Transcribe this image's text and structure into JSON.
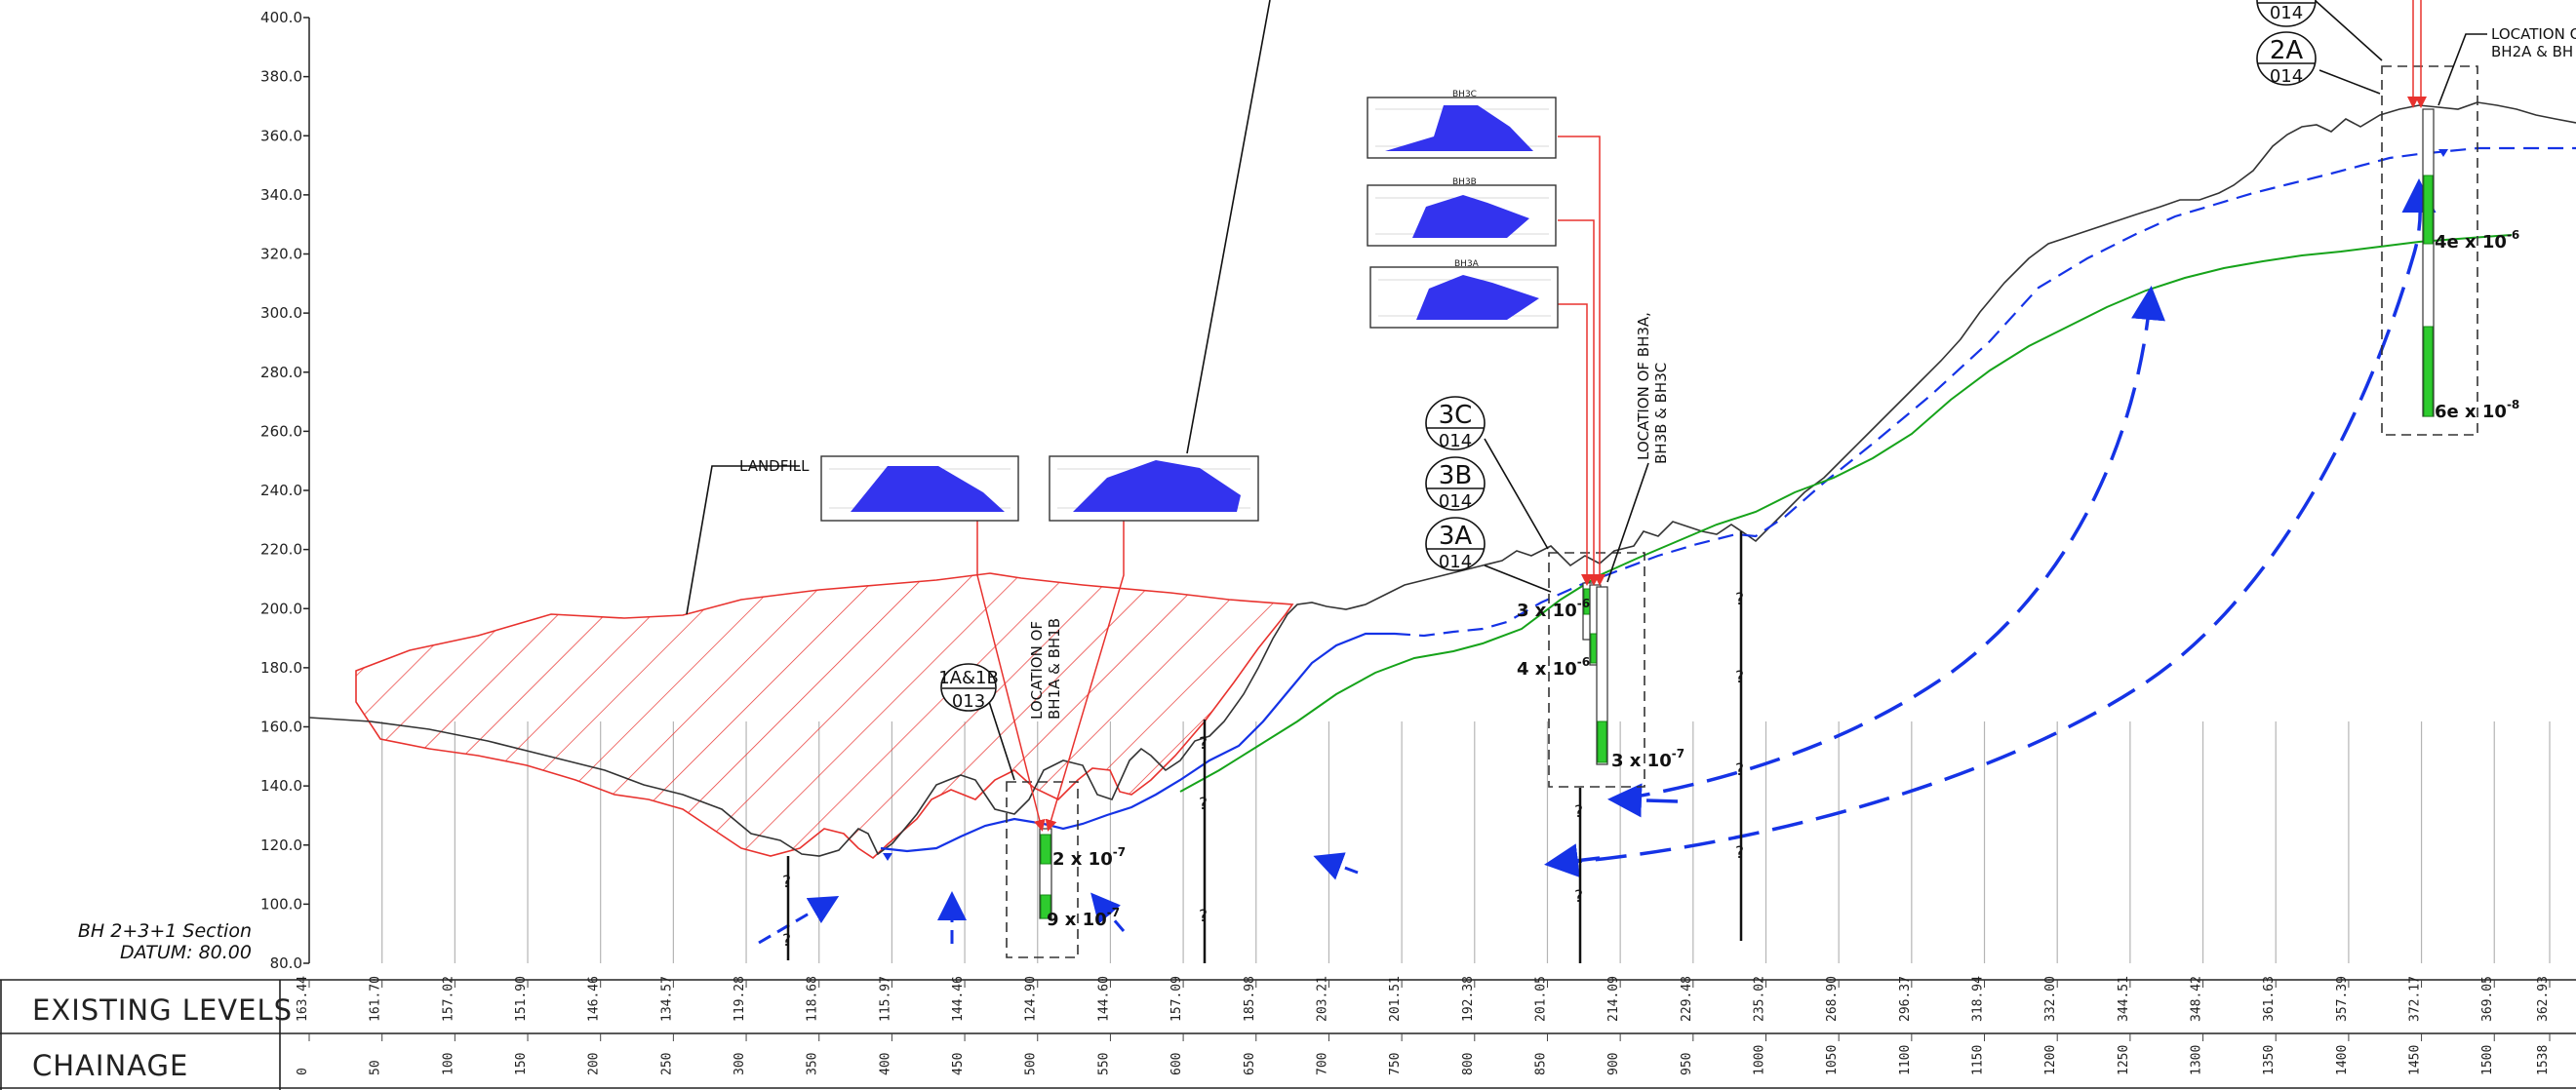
{
  "caption": {
    "line1": "BH 2+3+1 Section",
    "line2": "DATUM: 80.00"
  },
  "y_axis": {
    "min": 80,
    "max": 400,
    "ticks": [
      "80.0",
      "100.0",
      "120.0",
      "140.0",
      "160.0",
      "180.0",
      "200.0",
      "220.0",
      "240.0",
      "260.0",
      "280.0",
      "300.0",
      "320.0",
      "340.0",
      "360.0",
      "380.0",
      "400.0"
    ]
  },
  "bands": {
    "existing_levels_title": "EXISTING  LEVELS",
    "chainage_title": "CHAINAGE",
    "existing_levels": [
      "163.44",
      "161.70",
      "157.02",
      "151.90",
      "146.46",
      "134.57",
      "119.28",
      "118.68",
      "115.97",
      "144.46",
      "124.90",
      "144.60",
      "157.09",
      "185.98",
      "203.21",
      "201.51",
      "192.38",
      "201.05",
      "214.09",
      "229.48",
      "235.02",
      "268.90",
      "296.37",
      "318.94",
      "332.00",
      "344.51",
      "348.42",
      "361.63",
      "357.39",
      "372.17",
      "369.05",
      "362.93"
    ],
    "chainage": [
      "0",
      "50",
      "100",
      "150",
      "200",
      "250",
      "300",
      "350",
      "400",
      "450",
      "500",
      "550",
      "600",
      "650",
      "700",
      "750",
      "800",
      "850",
      "900",
      "950",
      "1000",
      "1050",
      "1100",
      "1150",
      "1200",
      "1250",
      "1300",
      "1350",
      "1400",
      "1450",
      "1500",
      "1538"
    ]
  },
  "annotations": {
    "landfill": "LANDFILL",
    "location_bh1": [
      "LOCATION  OF",
      "BH1A  &  BH1B"
    ],
    "location_bh3": [
      "LOCATION  OF  BH3A,",
      "BH3B  &  BH3C"
    ],
    "location_bh2": [
      "LOCATION  O",
      "BH2A  &  BH"
    ]
  },
  "tags": [
    {
      "top": "1A&1B",
      "bottom": "013"
    },
    {
      "top": "3C",
      "bottom": "014"
    },
    {
      "top": "3B",
      "bottom": "014"
    },
    {
      "top": "3A",
      "bottom": "014"
    },
    {
      "top": "2A",
      "bottom": "014"
    },
    {
      "top": "",
      "bottom": "014"
    }
  ],
  "inset_titles": [
    "BH3C",
    "BH3B",
    "BH3A"
  ],
  "permeabilities": [
    {
      "base": "2 x 10",
      "exp": "-7"
    },
    {
      "base": "9 x 10",
      "exp": "-7"
    },
    {
      "base": "3 x 10",
      "exp": "-6"
    },
    {
      "base": "4 x 10",
      "exp": "-6"
    },
    {
      "base": "3 x 10",
      "exp": "-7"
    },
    {
      "base": "4e x 10",
      "exp": "-6"
    },
    {
      "base": "6e x 10",
      "exp": "-8"
    }
  ],
  "question_mark": "?",
  "colors": {
    "ground": "#333333",
    "landfill": "#e8322e",
    "water_table": "#1533e6",
    "green_line": "#16a31a",
    "screen": "#2ecc2e",
    "inset_fill": "#3333ee",
    "grid": "#b5b5b5"
  }
}
